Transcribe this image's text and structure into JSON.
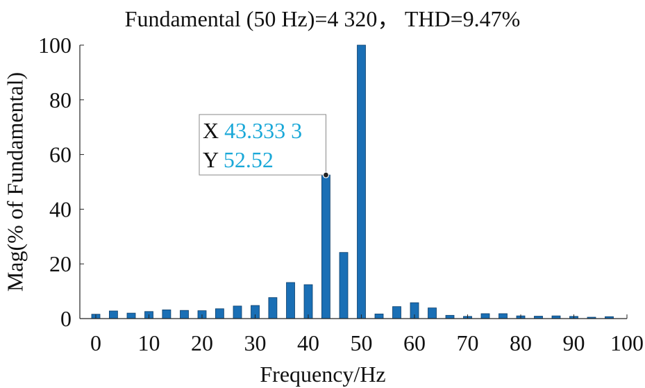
{
  "chart_data": {
    "type": "bar",
    "title": "Fundamental (50 Hz)=4 320， THD=9.47%",
    "xlabel": "Frequency/Hz",
    "ylabel": "Mag(% of Fundamental)",
    "xlim": [
      -3,
      100
    ],
    "ylim": [
      0,
      100
    ],
    "xticks": [
      "0",
      "10",
      "20",
      "30",
      "40",
      "50",
      "60",
      "70",
      "80",
      "90",
      "100"
    ],
    "yticks": [
      "0",
      "20",
      "40",
      "60",
      "80",
      "100"
    ],
    "grid": false,
    "bar_color": "#1a6fb5",
    "x": [
      0,
      3.33,
      6.67,
      10,
      13.33,
      16.67,
      20,
      23.33,
      26.67,
      30,
      33.33,
      36.67,
      40,
      43.33,
      46.67,
      50,
      53.33,
      56.67,
      60,
      63.33,
      66.67,
      70,
      73.33,
      76.67,
      80,
      83.33,
      86.67,
      90,
      93.33,
      96.67
    ],
    "values": [
      1.6,
      2.8,
      2.0,
      2.6,
      3.2,
      3.0,
      2.9,
      3.6,
      4.6,
      4.8,
      7.7,
      13.2,
      12.4,
      52.52,
      24.2,
      100,
      1.7,
      4.4,
      5.8,
      3.9,
      1.2,
      0.8,
      1.8,
      1.8,
      1.0,
      0.9,
      1.0,
      0.8,
      0.5,
      0.7
    ],
    "datatip": {
      "x_label": "X",
      "x_value": "43.333 3",
      "y_label": "Y",
      "y_value": "52.52",
      "point": [
        43.33,
        52.52
      ],
      "value_color": "#1aa8d8"
    }
  }
}
